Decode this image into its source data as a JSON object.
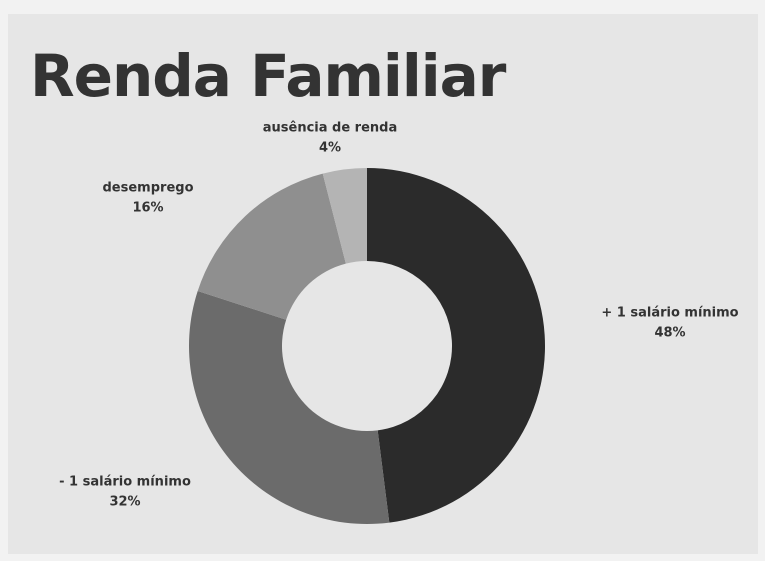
{
  "chart_data": {
    "type": "pie",
    "title": "Renda Familiar",
    "categories": [
      "+ 1 salário mínimo",
      "- 1 salário mínimo",
      "desemprego",
      "ausência de renda"
    ],
    "values": [
      48,
      32,
      16,
      4
    ],
    "value_labels": [
      "48%",
      "32%",
      "16%",
      "4%"
    ],
    "colors": [
      "#2b2b2b",
      "#6b6b6b",
      "#8f8f8f",
      "#b4b4b4"
    ],
    "donut": true
  }
}
